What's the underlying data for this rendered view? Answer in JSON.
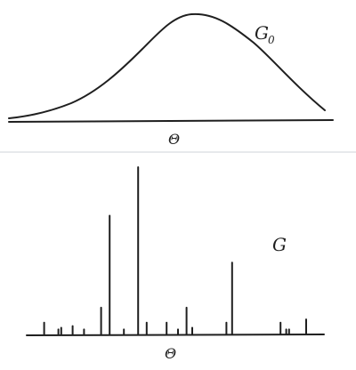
{
  "top_panel": {
    "curve_label": "G",
    "curve_subscript": "0",
    "axis_symbol": "Θ"
  },
  "bottom_panel": {
    "label": "G",
    "axis_symbol": "Θ",
    "atoms": [
      {
        "theta": 0.03,
        "weight": 0.07
      },
      {
        "theta": 0.08,
        "weight": 0.03
      },
      {
        "theta": 0.09,
        "weight": 0.04
      },
      {
        "theta": 0.13,
        "weight": 0.05
      },
      {
        "theta": 0.17,
        "weight": 0.03
      },
      {
        "theta": 0.23,
        "weight": 0.16
      },
      {
        "theta": 0.26,
        "weight": 0.71
      },
      {
        "theta": 0.31,
        "weight": 0.03
      },
      {
        "theta": 0.36,
        "weight": 1.0
      },
      {
        "theta": 0.39,
        "weight": 0.07
      },
      {
        "theta": 0.46,
        "weight": 0.07
      },
      {
        "theta": 0.5,
        "weight": 0.03
      },
      {
        "theta": 0.53,
        "weight": 0.16
      },
      {
        "theta": 0.55,
        "weight": 0.04
      },
      {
        "theta": 0.67,
        "weight": 0.07
      },
      {
        "theta": 0.69,
        "weight": 0.43
      },
      {
        "theta": 0.86,
        "weight": 0.07
      },
      {
        "theta": 0.88,
        "weight": 0.03
      },
      {
        "theta": 0.89,
        "weight": 0.03
      },
      {
        "theta": 0.95,
        "weight": 0.09
      }
    ]
  }
}
